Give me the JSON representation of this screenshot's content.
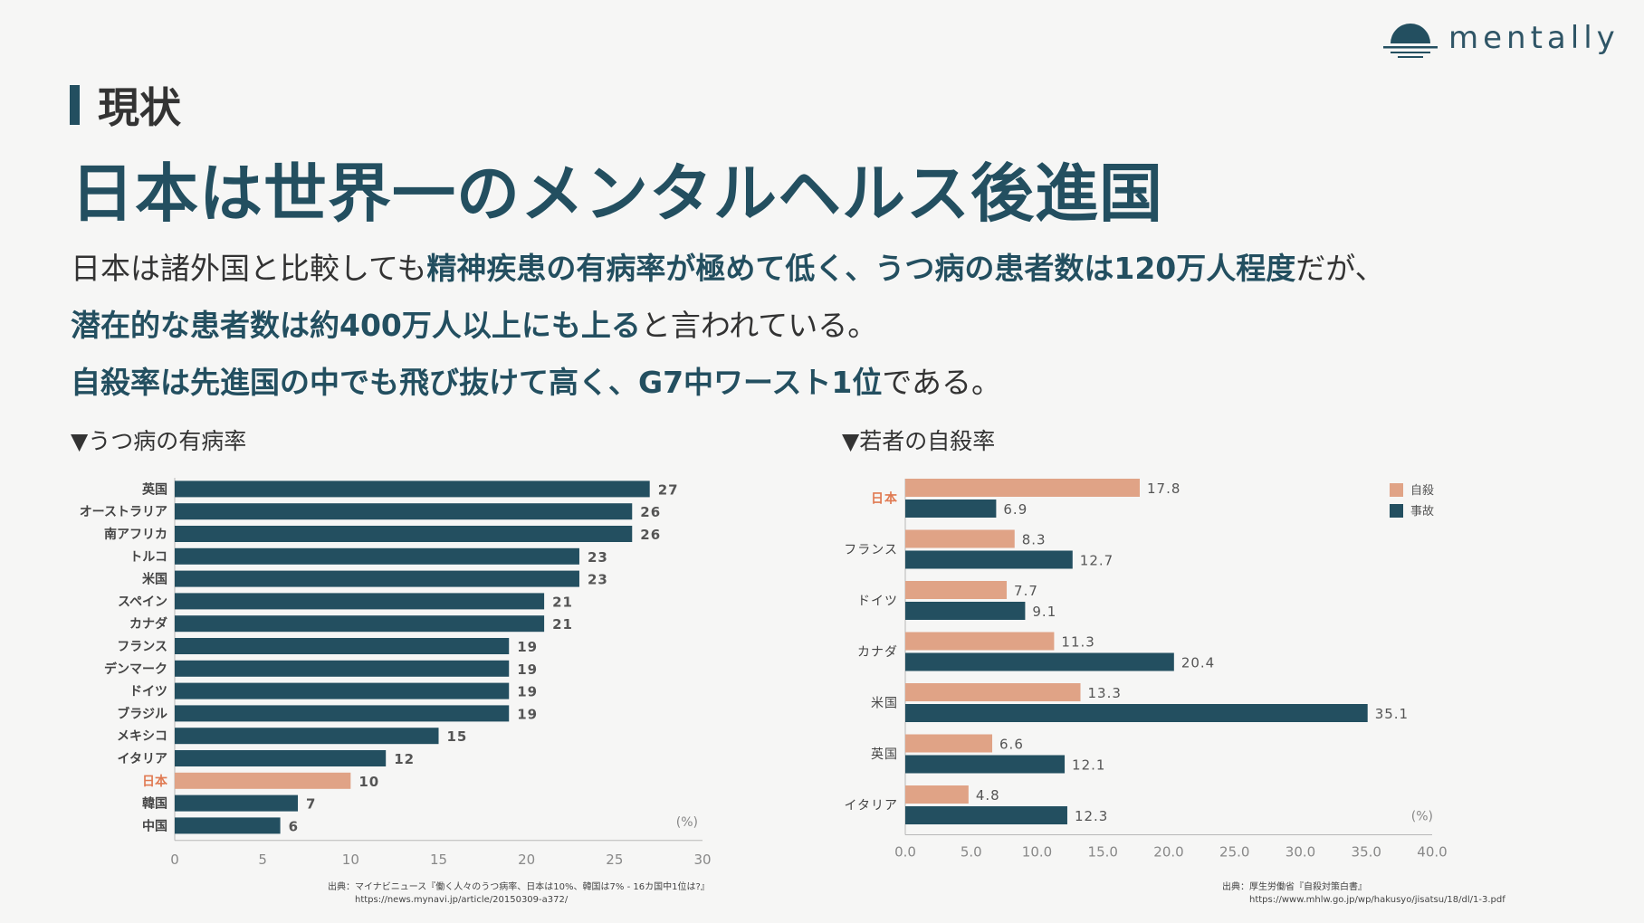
{
  "brand": {
    "name": "mentally",
    "color": "#234f60"
  },
  "section": {
    "label": "現状"
  },
  "headline": "日本は世界一のメンタルヘルス後進国",
  "body": {
    "line1": {
      "a": "日本は諸外国と比較しても",
      "b": "精神疾患の有病率が極めて低く、うつ病の患者数は120万人程度",
      "c": "だが、"
    },
    "line2": {
      "a": "潜在的な患者数は約400万人以上にも上る",
      "b": "と言われている。"
    },
    "line3": {
      "a": "自殺率は先進国の中でも飛び抜けて高く、G7中ワースト1位",
      "b": "である。"
    }
  },
  "colors": {
    "dark": "#234f60",
    "salmon": "#e0a386",
    "highlight_label": "#e07a52"
  },
  "chart_data": [
    {
      "type": "bar",
      "orientation": "horizontal",
      "title": "▼うつ病の有病率",
      "unit_label": "(%)",
      "categories": [
        "英国",
        "オーストラリア",
        "南アフリカ",
        "トルコ",
        "米国",
        "スペイン",
        "カナダ",
        "フランス",
        "デンマーク",
        "ドイツ",
        "ブラジル",
        "メキシコ",
        "イタリア",
        "日本",
        "韓国",
        "中国"
      ],
      "values": [
        27,
        26,
        26,
        23,
        23,
        21,
        21,
        19,
        19,
        19,
        19,
        15,
        12,
        10,
        7,
        6
      ],
      "highlight": "日本",
      "xlim": [
        0,
        30
      ],
      "xticks": [
        0,
        5,
        10,
        15,
        20,
        25,
        30
      ],
      "source": "出典：マイナビニュース『働く人々のうつ病率、日本は10%、韓国は7% - 16カ国中1位は?』",
      "source_url": "https://news.mynavi.jp/article/20150309-a372/"
    },
    {
      "type": "bar",
      "orientation": "horizontal",
      "title": "▼若者の自殺率",
      "unit_label": "(%)",
      "categories": [
        "日本",
        "フランス",
        "ドイツ",
        "カナダ",
        "米国",
        "英国",
        "イタリア"
      ],
      "series": [
        {
          "name": "自殺",
          "values": [
            17.8,
            8.3,
            7.7,
            11.3,
            13.3,
            6.6,
            4.8
          ],
          "color": "#e0a386"
        },
        {
          "name": "事故",
          "values": [
            6.9,
            12.7,
            9.1,
            20.4,
            35.1,
            12.1,
            12.3
          ],
          "color": "#234f60"
        }
      ],
      "highlight": "日本",
      "xlim": [
        0,
        40
      ],
      "xticks": [
        "0.0",
        "5.0",
        "10.0",
        "15.0",
        "20.0",
        "25.0",
        "30.0",
        "35.0",
        "40.0"
      ],
      "legend": "top-right",
      "source": "出典：厚生労働省『自殺対策白書』",
      "source_url": "https://www.mhlw.go.jp/wp/hakusyo/jisatsu/18/dl/1-3.pdf"
    }
  ]
}
